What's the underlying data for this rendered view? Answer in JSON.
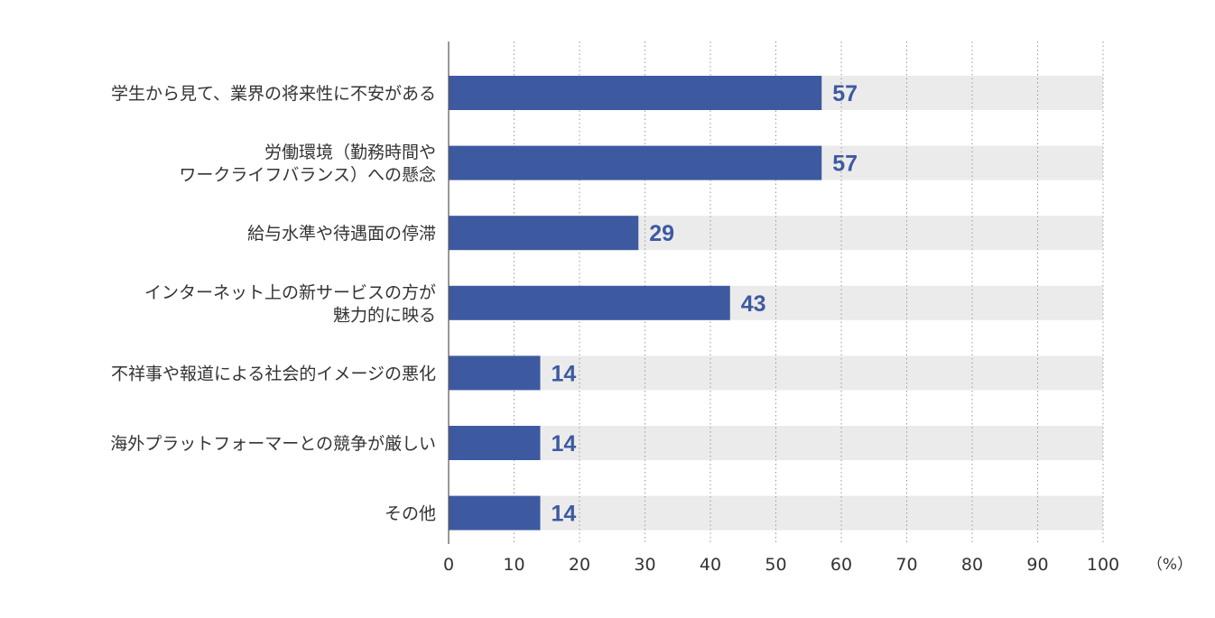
{
  "chart_data": {
    "type": "bar",
    "orientation": "horizontal",
    "categories": [
      [
        "学生から見て、業界の将来性に不安がある"
      ],
      [
        "労働環境（勤務時間や",
        "ワークライフバランス）への懸念"
      ],
      [
        "給与水準や待遇面の停滞"
      ],
      [
        "インターネット上の新サービスの方が",
        "魅力的に映る"
      ],
      [
        "不祥事や報道による社会的イメージの悪化"
      ],
      [
        "海外プラットフォーマーとの競争が厳しい"
      ],
      [
        "その他"
      ]
    ],
    "values": [
      57,
      57,
      29,
      43,
      14,
      14,
      14
    ],
    "xlim": [
      0,
      100
    ],
    "xticks": [
      "0",
      "10",
      "20",
      "30",
      "40",
      "50",
      "60",
      "70",
      "80",
      "90",
      "100"
    ],
    "unit_label": "（%）",
    "grid": true,
    "bar_color": "#3d5aa1",
    "track_color": "#ebebeb",
    "value_label_color": "#3d5aa1"
  }
}
